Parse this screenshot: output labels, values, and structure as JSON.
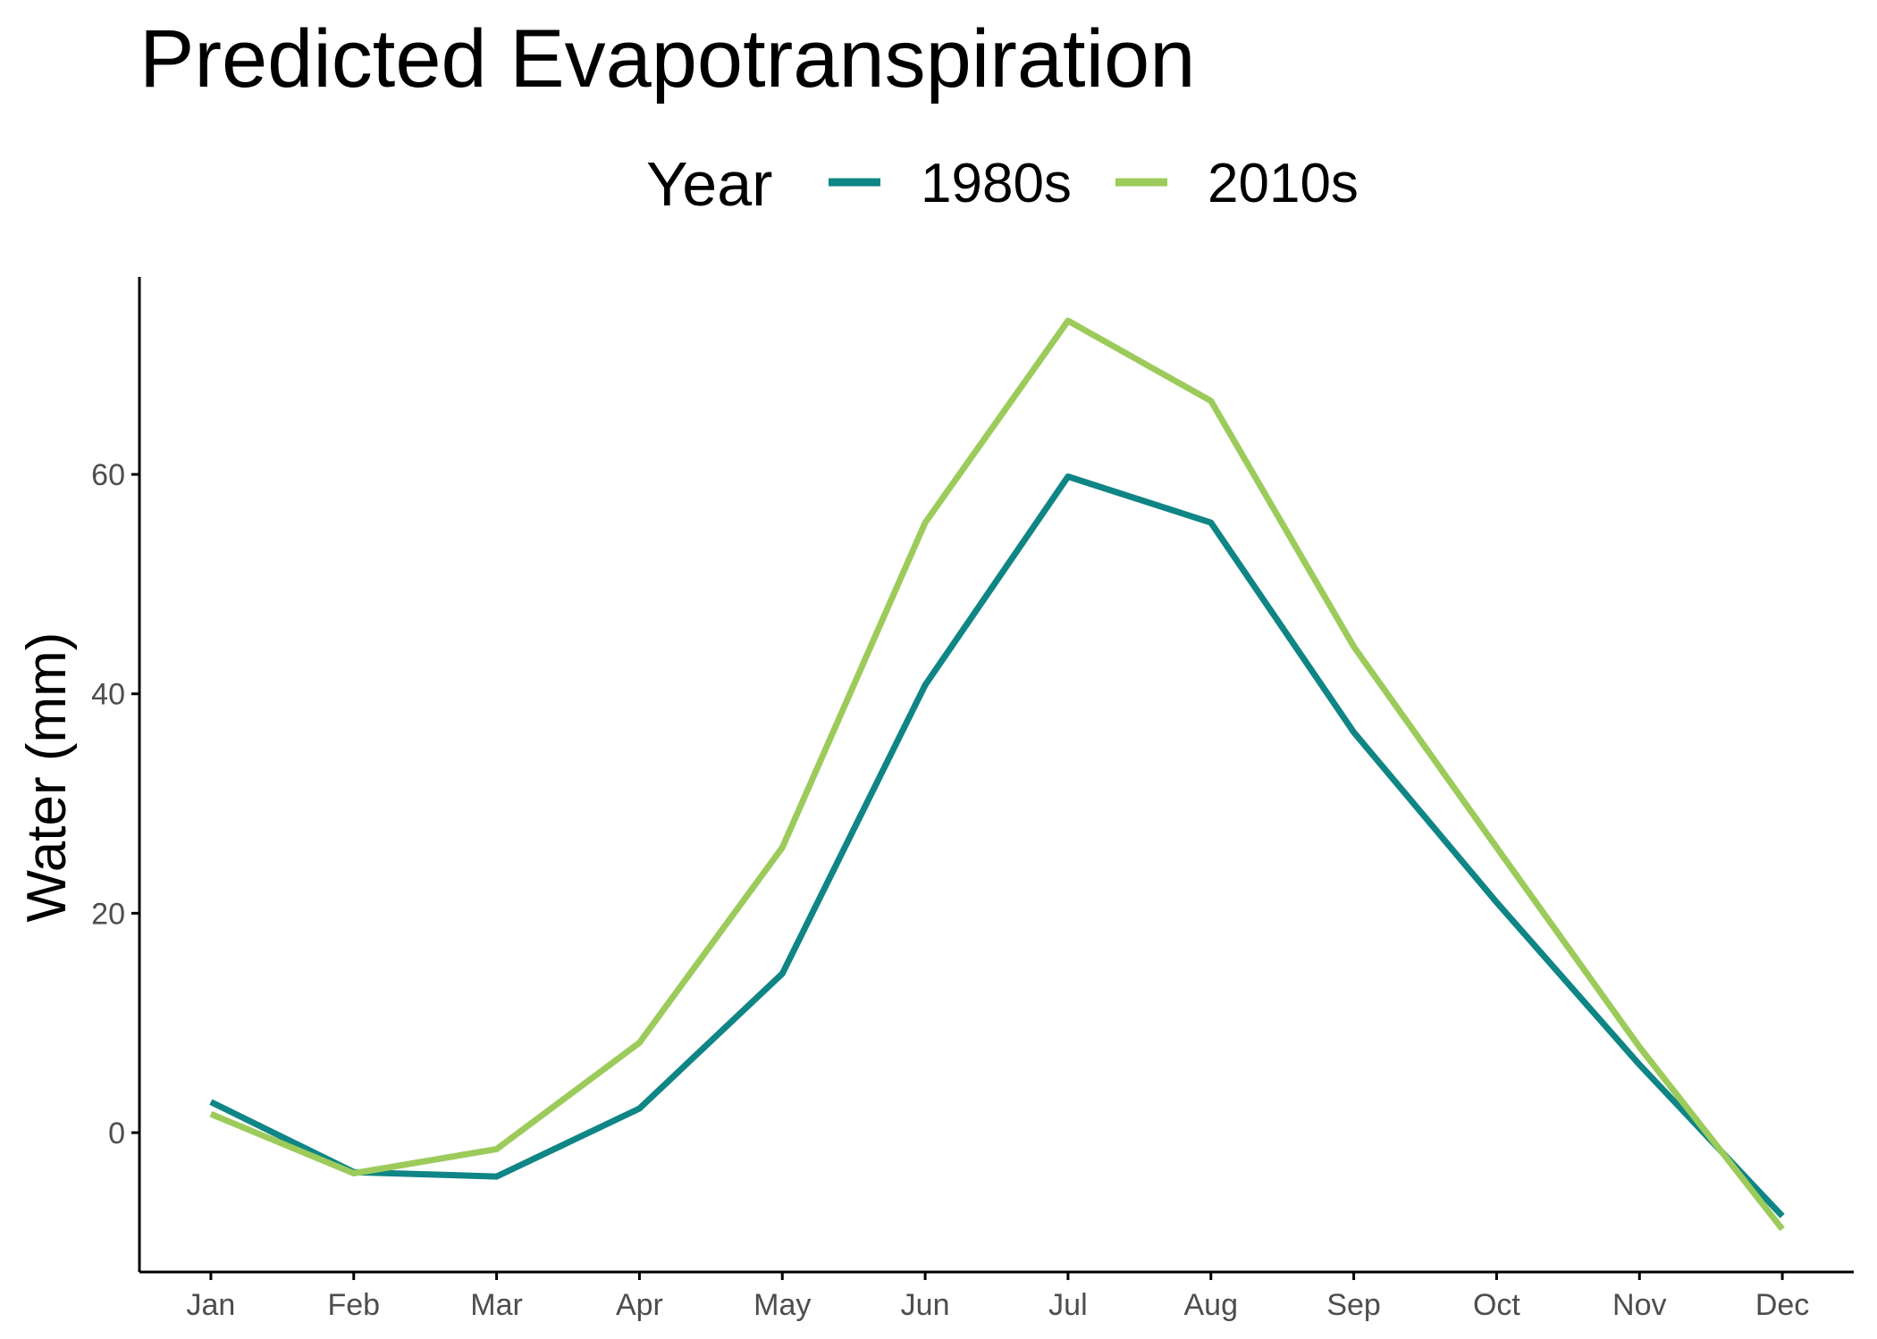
{
  "chart_data": {
    "type": "line",
    "title": "Predicted Evapotranspiration",
    "xlabel": "",
    "ylabel": "Water (mm)",
    "categories": [
      "Jan",
      "Feb",
      "Mar",
      "Apr",
      "May",
      "Jun",
      "Jul",
      "Aug",
      "Sep",
      "Oct",
      "Nov",
      "Dec"
    ],
    "yticks": [
      0,
      20,
      40,
      60
    ],
    "ylim": [
      -12.7,
      78
    ],
    "grid": false,
    "legend": {
      "title": "Year",
      "position": "top"
    },
    "series": [
      {
        "name": "1980s",
        "color": "#0f8585",
        "values": [
          2.8,
          -3.6,
          -4.0,
          2.2,
          14.5,
          40.8,
          59.8,
          55.6,
          36.5,
          21.0,
          6.2,
          -7.6
        ]
      },
      {
        "name": "2010s",
        "color": "#9ccb5b",
        "values": [
          1.7,
          -3.7,
          -1.5,
          8.2,
          26.0,
          55.6,
          74.0,
          66.7,
          44.3,
          26.0,
          7.8,
          -8.8
        ]
      }
    ]
  }
}
